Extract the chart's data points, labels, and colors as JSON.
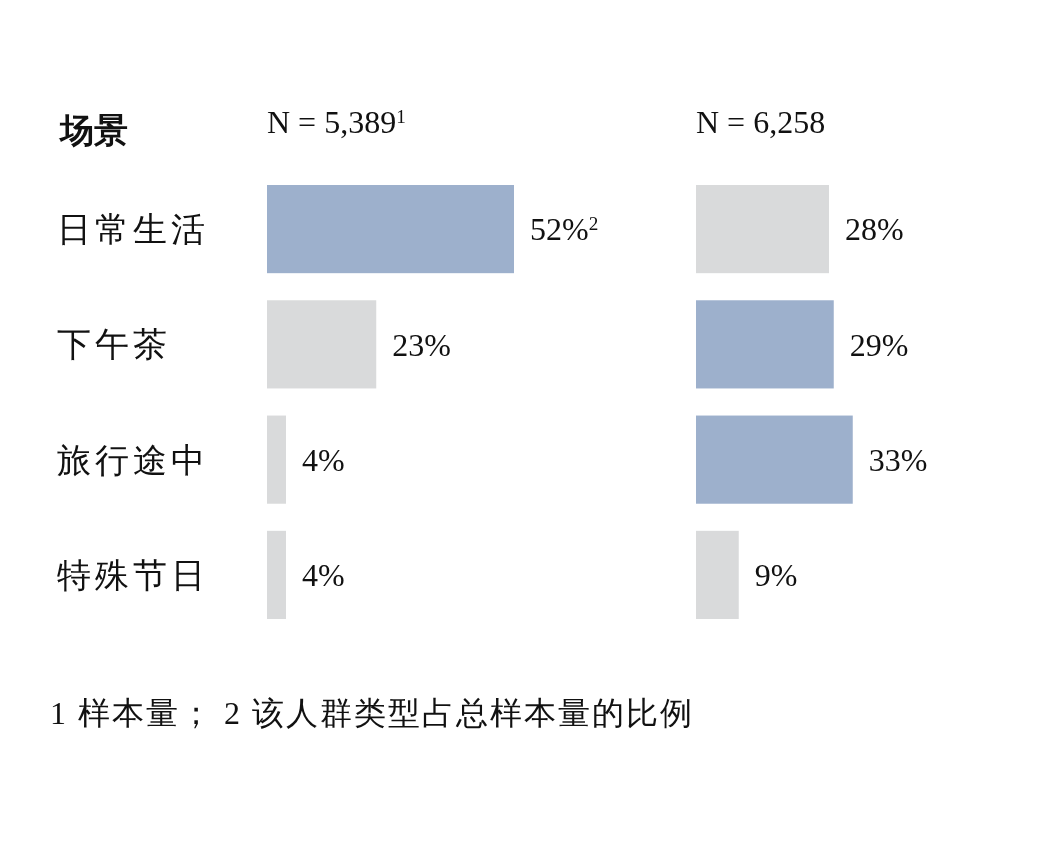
{
  "chart_data": [
    {
      "type": "bar",
      "orientation": "horizontal",
      "ylabel": "场景",
      "subtitle": "N = 5,389$^{1}$",
      "categories": [
        "日常生活",
        "下午茶",
        "旅行途中",
        "特殊节日"
      ],
      "values": [
        52,
        23,
        4,
        4
      ],
      "colors": [
        "#9db0cc",
        "#d9dadb",
        "#d9dadb",
        "#d9dadb"
      ],
      "value_labels": [
        "52%$^{2}$",
        "23%",
        "4%",
        "4%"
      ],
      "annotations": [
        "1 样本量； 2 该人群类型占总样本量的比例"
      ]
    },
    {
      "type": "bar",
      "orientation": "horizontal",
      "subtitle": "N = 6,258",
      "categories": [
        null,
        null,
        null,
        null
      ],
      "values": [
        28,
        29,
        33,
        9
      ],
      "colors": [
        "#d9dadb",
        "#9db0cc",
        "#9db0cc",
        "#d9dadb"
      ],
      "value_labels": [
        "28%",
        "29%",
        "33%",
        "9%"
      ]
    }
  ]
}
